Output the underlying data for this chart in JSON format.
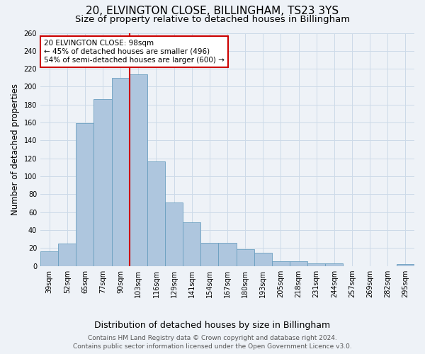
{
  "title": "20, ELVINGTON CLOSE, BILLINGHAM, TS23 3YS",
  "subtitle": "Size of property relative to detached houses in Billingham",
  "xlabel": "Distribution of detached houses by size in Billingham",
  "ylabel": "Number of detached properties",
  "categories": [
    "39sqm",
    "52sqm",
    "65sqm",
    "77sqm",
    "90sqm",
    "103sqm",
    "116sqm",
    "129sqm",
    "141sqm",
    "154sqm",
    "167sqm",
    "180sqm",
    "193sqm",
    "205sqm",
    "218sqm",
    "231sqm",
    "244sqm",
    "257sqm",
    "269sqm",
    "282sqm",
    "295sqm"
  ],
  "values": [
    16,
    25,
    159,
    186,
    210,
    214,
    117,
    71,
    49,
    26,
    26,
    19,
    15,
    5,
    5,
    3,
    3,
    0,
    0,
    0,
    2
  ],
  "bar_color": "#aec6de",
  "bar_edge_color": "#6a9fc0",
  "grid_color": "#ccdae8",
  "background_color": "#eef2f7",
  "vline_x": 4.5,
  "vline_color": "#cc0000",
  "annotation_text": "20 ELVINGTON CLOSE: 98sqm\n← 45% of detached houses are smaller (496)\n54% of semi-detached houses are larger (600) →",
  "annotation_box_color": "#ffffff",
  "annotation_box_edge_color": "#cc0000",
  "footer_text": "Contains HM Land Registry data © Crown copyright and database right 2024.\nContains public sector information licensed under the Open Government Licence v3.0.",
  "ylim": [
    0,
    260
  ],
  "yticks": [
    0,
    20,
    40,
    60,
    80,
    100,
    120,
    140,
    160,
    180,
    200,
    220,
    240,
    260
  ],
  "title_fontsize": 11,
  "subtitle_fontsize": 9.5,
  "xlabel_fontsize": 9,
  "ylabel_fontsize": 8.5,
  "tick_fontsize": 7,
  "annotation_fontsize": 7.5,
  "footer_fontsize": 6.5
}
